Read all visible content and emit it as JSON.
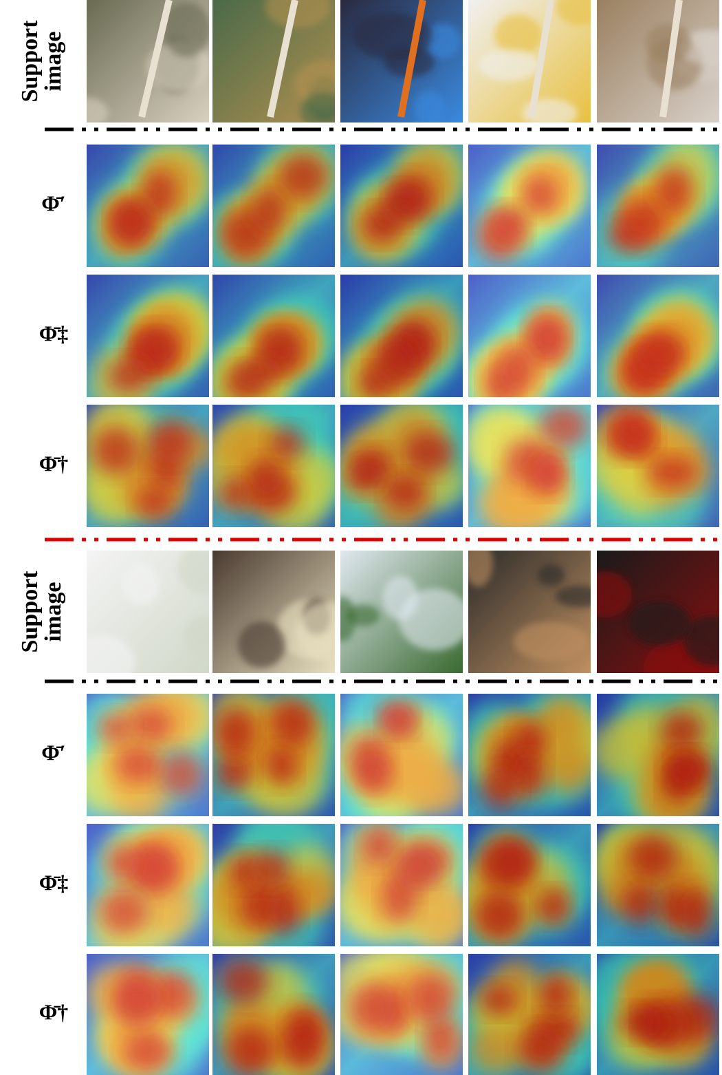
{
  "panels": [
    {
      "rows": [
        {
          "label": [
            "Support",
            "image"
          ]
        },
        {
          "label": [
            "Φ̄′"
          ]
        },
        {
          "label": [
            "Φ̄‡"
          ]
        },
        {
          "label": [
            "Φ̄†"
          ]
        }
      ]
    },
    {
      "rows": [
        {
          "label": [
            "Support",
            "image"
          ]
        },
        {
          "label": [
            "Φ̄′"
          ]
        },
        {
          "label": [
            "Φ̄‡"
          ]
        },
        {
          "label": [
            "Φ̄†"
          ]
        }
      ]
    }
  ]
}
